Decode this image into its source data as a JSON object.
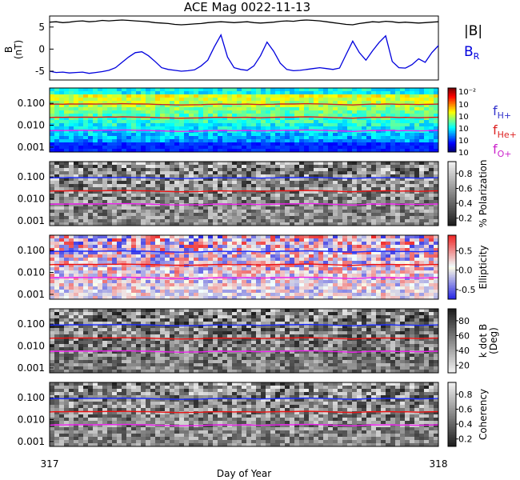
{
  "title": "ACE Mag 0022-11-13",
  "xlabel": "Day of Year",
  "x_ticks": [
    "317",
    "318"
  ],
  "chart_data": [
    {
      "type": "line",
      "ylabel": "B\n(nT)",
      "ylim": [
        -7,
        7.5
      ],
      "y_ticks": [
        -5,
        0,
        5
      ],
      "legend": [
        "|B|",
        "B_R"
      ],
      "series": [
        {
          "name": "|B|",
          "color": "#000000",
          "values": [
            6.1,
            6.2,
            6.0,
            6.1,
            6.3,
            6.4,
            6.2,
            6.3,
            6.5,
            6.4,
            6.5,
            6.6,
            6.5,
            6.4,
            6.3,
            6.2,
            6.0,
            5.9,
            5.8,
            5.6,
            5.5,
            5.6,
            5.7,
            5.8,
            6.0,
            6.1,
            6.2,
            6.1,
            6.0,
            6.1,
            6.2,
            6.0,
            5.9,
            6.0,
            6.1,
            6.3,
            6.4,
            6.3,
            6.5,
            6.6,
            6.5,
            6.4,
            6.2,
            6.0,
            5.8,
            5.6,
            5.5,
            5.8,
            6.0,
            6.2,
            6.1,
            6.3,
            6.2,
            6.0,
            6.1,
            6.0,
            5.9,
            6.0,
            6.1,
            6.2
          ]
        },
        {
          "name": "B_R",
          "color": "#0000dd",
          "values": [
            -5.0,
            -5.3,
            -5.2,
            -5.4,
            -5.3,
            -5.2,
            -5.5,
            -5.3,
            -5.1,
            -4.8,
            -4.2,
            -3.0,
            -1.8,
            -0.8,
            -0.6,
            -1.5,
            -2.8,
            -4.2,
            -4.6,
            -4.8,
            -5.0,
            -4.9,
            -4.7,
            -3.8,
            -2.5,
            0.5,
            3.2,
            -1.8,
            -4.2,
            -4.6,
            -4.8,
            -3.8,
            -1.5,
            1.6,
            -0.5,
            -3.2,
            -4.6,
            -4.9,
            -4.8,
            -4.6,
            -4.4,
            -4.2,
            -4.4,
            -4.6,
            -4.3,
            -1.2,
            1.8,
            -0.8,
            -2.5,
            -0.4,
            1.5,
            3.0,
            -2.8,
            -4.2,
            -4.3,
            -3.5,
            -2.2,
            -3.0,
            -0.8,
            0.8
          ]
        }
      ]
    },
    {
      "type": "heatmap",
      "ylim": [
        0.0006,
        0.5
      ],
      "y_ticks": [
        "0.100",
        "0.010",
        "0.001"
      ],
      "colorbar_ticks": [
        "10⁻²"
      ],
      "colorbar_ticks_plain": [
        "10",
        "10",
        "10",
        "10",
        "10"
      ],
      "legend": [
        "f_H+",
        "f_He+",
        "f_O+"
      ]
    },
    {
      "type": "heatmap",
      "ylim": [
        0.0006,
        0.5
      ],
      "y_ticks": [
        "0.100",
        "0.010",
        "0.001"
      ],
      "colorbar_label": "% Polarization",
      "colorbar_ticks": [
        "0.8",
        "0.6",
        "0.4",
        "0.2"
      ]
    },
    {
      "type": "heatmap",
      "ylim": [
        0.0006,
        0.5
      ],
      "y_ticks": [
        "0.100",
        "0.010",
        "0.001"
      ],
      "colorbar_label": "Ellipticity",
      "colorbar_ticks": [
        "0.5",
        "0.0",
        "-0.5"
      ]
    },
    {
      "type": "heatmap",
      "ylim": [
        0.0006,
        0.5
      ],
      "y_ticks": [
        "0.100",
        "0.010",
        "0.001"
      ],
      "colorbar_label": "k dot B\n(Deg)",
      "colorbar_ticks": [
        "80",
        "60",
        "40",
        "20"
      ]
    },
    {
      "type": "heatmap",
      "ylim": [
        0.0006,
        0.5
      ],
      "y_ticks": [
        "0.100",
        "0.010",
        "0.001"
      ],
      "colorbar_label": "Coherency",
      "colorbar_ticks": [
        "0.8",
        "0.6",
        "0.4",
        "0.2"
      ]
    }
  ],
  "gyro_lines": {
    "note_units": "frequency in Hz at each time sample",
    "H": [
      0.09,
      0.092,
      0.091,
      0.093,
      0.092,
      0.094,
      0.093,
      0.092,
      0.094,
      0.095,
      0.094,
      0.096,
      0.095,
      0.094,
      0.093,
      0.092,
      0.09,
      0.088,
      0.087,
      0.085,
      0.084,
      0.085,
      0.086,
      0.087,
      0.09,
      0.091,
      0.092,
      0.091,
      0.09,
      0.091,
      0.092,
      0.09,
      0.088,
      0.09,
      0.091,
      0.093,
      0.094,
      0.093,
      0.095,
      0.096,
      0.095,
      0.094,
      0.092,
      0.09,
      0.088,
      0.086,
      0.084,
      0.087,
      0.09,
      0.092,
      0.091,
      0.093,
      0.092,
      0.09,
      0.091,
      0.09,
      0.088,
      0.09,
      0.091,
      0.092
    ],
    "He": [
      0.0225,
      0.023,
      0.0228,
      0.0232,
      0.023,
      0.0235,
      0.0232,
      0.023,
      0.0235,
      0.0238,
      0.0235,
      0.024,
      0.0238,
      0.0235,
      0.0232,
      0.023,
      0.0225,
      0.022,
      0.0218,
      0.0212,
      0.021,
      0.0212,
      0.0215,
      0.0218,
      0.0225,
      0.0228,
      0.023,
      0.0228,
      0.0225,
      0.0228,
      0.023,
      0.0225,
      0.022,
      0.0225,
      0.0228,
      0.0232,
      0.0235,
      0.0232,
      0.0238,
      0.024,
      0.0238,
      0.0235,
      0.023,
      0.0225,
      0.022,
      0.0215,
      0.021,
      0.0218,
      0.0225,
      0.023,
      0.0228,
      0.0232,
      0.023,
      0.0225,
      0.0228,
      0.0225,
      0.022,
      0.0225,
      0.0228,
      0.023
    ],
    "O": [
      0.0056,
      0.0058,
      0.0057,
      0.0058,
      0.0058,
      0.0059,
      0.0058,
      0.0058,
      0.0059,
      0.006,
      0.0059,
      0.006,
      0.006,
      0.0059,
      0.0058,
      0.0058,
      0.0056,
      0.0055,
      0.0054,
      0.0053,
      0.0052,
      0.0053,
      0.0054,
      0.0054,
      0.0056,
      0.0057,
      0.0058,
      0.0057,
      0.0056,
      0.0057,
      0.0058,
      0.0056,
      0.0055,
      0.0056,
      0.0057,
      0.0058,
      0.0059,
      0.0058,
      0.006,
      0.006,
      0.006,
      0.0059,
      0.0058,
      0.0056,
      0.0055,
      0.0054,
      0.0052,
      0.0054,
      0.0056,
      0.0058,
      0.0057,
      0.0058,
      0.0058,
      0.0056,
      0.0057,
      0.0056,
      0.0055,
      0.0056,
      0.0057,
      0.0058
    ]
  }
}
